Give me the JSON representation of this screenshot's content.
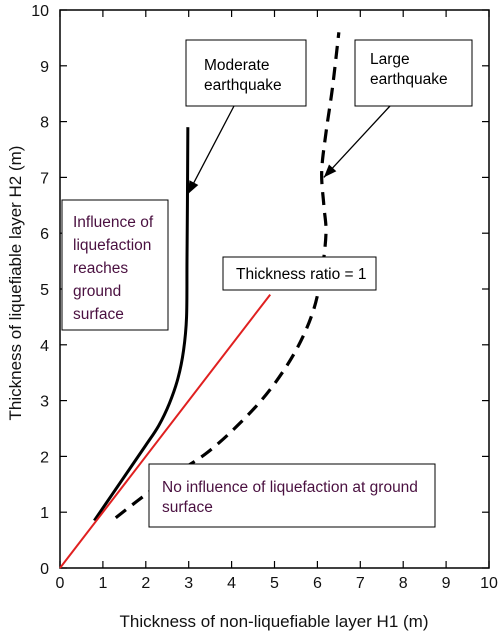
{
  "chart_data": {
    "type": "line",
    "title": "",
    "xlabel": "Thickness of non-liquefiable layer H1 (m)",
    "ylabel": "Thickness of liquefiable layer H2 (m)",
    "xlim": [
      0,
      10
    ],
    "ylim": [
      0,
      10
    ],
    "xticks": [
      "0",
      "1",
      "2",
      "3",
      "4",
      "5",
      "6",
      "7",
      "8",
      "9",
      "10"
    ],
    "yticks": [
      "0",
      "1",
      "2",
      "3",
      "4",
      "5",
      "6",
      "7",
      "8",
      "9",
      "10"
    ],
    "grid": false,
    "legend": "none",
    "series": [
      {
        "name": "Moderate earthquake",
        "style": "solid",
        "color": "#000000",
        "points": [
          [
            0.8,
            0.85
          ],
          [
            1.2,
            1.3
          ],
          [
            1.6,
            1.75
          ],
          [
            2.0,
            2.2
          ],
          [
            2.3,
            2.55
          ],
          [
            2.55,
            2.95
          ],
          [
            2.75,
            3.4
          ],
          [
            2.88,
            3.9
          ],
          [
            2.95,
            4.5
          ],
          [
            2.96,
            5.5
          ],
          [
            2.97,
            6.5
          ],
          [
            2.98,
            7.9
          ]
        ]
      },
      {
        "name": "Large earthquake",
        "style": "dashed",
        "color": "#000000",
        "points": [
          [
            1.3,
            0.9
          ],
          [
            1.8,
            1.2
          ],
          [
            2.5,
            1.6
          ],
          [
            3.4,
            2.05
          ],
          [
            4.2,
            2.6
          ],
          [
            4.9,
            3.2
          ],
          [
            5.5,
            3.9
          ],
          [
            5.9,
            4.6
          ],
          [
            6.1,
            5.3
          ],
          [
            6.2,
            6.0
          ],
          [
            6.15,
            6.5
          ],
          [
            6.1,
            7.1
          ],
          [
            6.2,
            7.8
          ],
          [
            6.35,
            8.6
          ],
          [
            6.5,
            9.6
          ]
        ]
      },
      {
        "name": "Thickness ratio = 1",
        "style": "solid",
        "color": "#e02020",
        "points": [
          [
            0,
            0
          ],
          [
            4.9,
            4.9
          ]
        ]
      }
    ],
    "annotations": [
      {
        "id": "moderate",
        "lines": [
          "Moderate",
          "earthquake"
        ],
        "color": "#000000",
        "arrow_to": [
          2.98,
          6.7
        ]
      },
      {
        "id": "large",
        "lines": [
          "Large",
          "earthquake"
        ],
        "color": "#000000",
        "arrow_to": [
          6.15,
          7.0
        ]
      },
      {
        "id": "influence",
        "lines": [
          "Influence of",
          "liquefaction",
          "reaches",
          "ground",
          "surface"
        ],
        "color": "#4a1040"
      },
      {
        "id": "ratio",
        "lines": [
          "Thickness ratio = 1"
        ],
        "color": "#000000"
      },
      {
        "id": "noinfluence",
        "lines": [
          "No influence of liquefaction at ground",
          "surface"
        ],
        "color": "#4a1040"
      }
    ]
  }
}
